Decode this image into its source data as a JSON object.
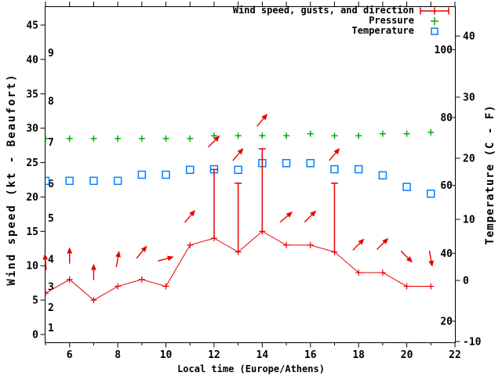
{
  "chart_data": {
    "type": "line",
    "title": "",
    "xlabel": "Local time (Europe/Athens)",
    "ylabel_left": "Wind speed (kt - Beaufort)",
    "ylabel_right": "Temperature (C - F)",
    "x_axis": {
      "min": 5,
      "max": 22,
      "labeled_hours": [
        6,
        8,
        10,
        12,
        14,
        16,
        18,
        20,
        22
      ],
      "minor_hours": [
        5,
        7,
        9,
        11,
        13,
        15,
        17,
        19,
        21
      ]
    },
    "left_axis": {
      "unit": "kt",
      "tick_values": [
        0,
        5,
        10,
        15,
        20,
        25,
        30,
        35,
        40,
        45
      ],
      "beaufort_labels": [
        "1",
        "2",
        "3",
        "4",
        "5",
        "6",
        "7",
        "8",
        "9"
      ],
      "beaufort_threshold_kt": [
        1,
        4,
        7,
        11,
        17,
        22,
        28,
        34,
        41
      ]
    },
    "right_axis": {
      "celsius_ticks": [
        -10,
        0,
        10,
        20,
        30,
        40
      ],
      "fahrenheit_ticks": [
        20,
        40,
        60,
        80,
        100
      ]
    },
    "hours": [
      5,
      6,
      7,
      8,
      9,
      10,
      11,
      12,
      13,
      14,
      15,
      16,
      17,
      18,
      19,
      20,
      21
    ],
    "series": {
      "wind_speed_kt": [
        6,
        8,
        5,
        7,
        8,
        7,
        13,
        14,
        12,
        15,
        13,
        13,
        12,
        9,
        9,
        7,
        7
      ],
      "wind_gust_kt": [
        null,
        null,
        null,
        null,
        null,
        null,
        null,
        24,
        22,
        27,
        null,
        null,
        22,
        null,
        null,
        null,
        null
      ],
      "wind_dir_deg_screen": [
        -5,
        0,
        0,
        10,
        40,
        75,
        40,
        45,
        40,
        40,
        50,
        45,
        40,
        45,
        45,
        135,
        170
      ],
      "wind_arrow_height_kt": [
        10.6,
        11.5,
        9.1,
        11,
        12,
        11,
        17.2,
        28.1,
        26.2,
        31.2,
        17.1,
        17.2,
        26.2,
        13.1,
        13.2,
        11.3,
        11
      ],
      "pressure_plotted_on_wind_scale_kt": [
        28.5,
        28.5,
        28.5,
        28.5,
        28.5,
        28.5,
        28.5,
        28.9,
        28.9,
        28.9,
        28.9,
        29.2,
        28.9,
        28.9,
        29.2,
        29.2,
        29.4
      ],
      "temperature_c": [
        16.3,
        16.3,
        16.3,
        16.3,
        17.3,
        17.3,
        18.1,
        18.2,
        18.1,
        19.2,
        19.2,
        19.2,
        18.2,
        18.2,
        17.2,
        15.3,
        14.2
      ]
    },
    "legend": {
      "wind_label": "Wind speed, gusts, and direction",
      "pressure_label": "Pressure",
      "temperature_label": "Temperature"
    },
    "colors": {
      "wind": "#e60000",
      "pressure": "#00b000",
      "temperature": "#0080ff",
      "text": "#000000",
      "background": "#ffffff"
    },
    "legend_position": "top-right-inside",
    "grid": false
  }
}
